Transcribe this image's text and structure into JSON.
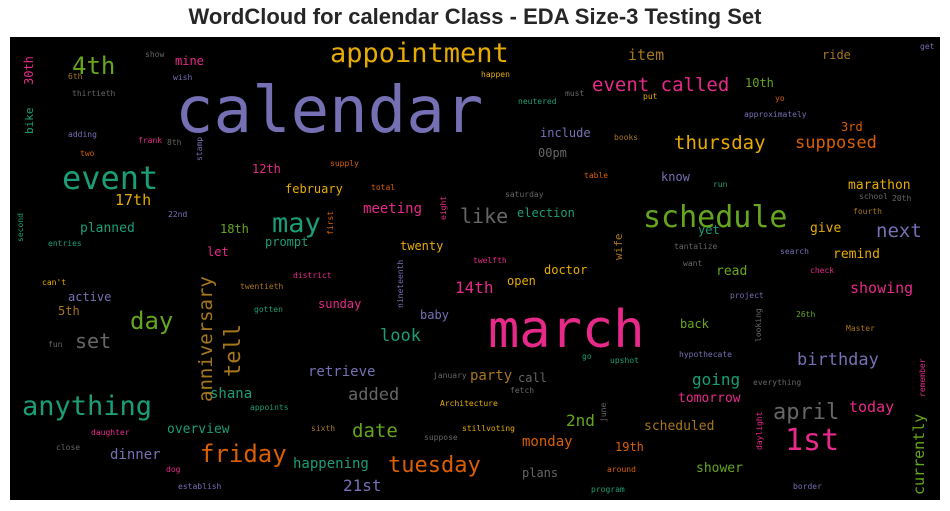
{
  "chart_data": {
    "type": "wordcloud",
    "title": "WordCloud for calendar Class - EDA Size-3 Testing Set",
    "background": "#000000",
    "palette": [
      "#7570b3",
      "#1b9e77",
      "#d95f02",
      "#e7298a",
      "#66a61e",
      "#e6ab02",
      "#a6761d",
      "#666666"
    ],
    "words": [
      {
        "text": "calendar",
        "size": 64,
        "color": "#7570b3"
      },
      {
        "text": "march",
        "size": 52,
        "color": "#e7298a"
      },
      {
        "text": "schedule",
        "size": 30,
        "color": "#66a61e"
      },
      {
        "text": "appointment",
        "size": 27,
        "color": "#e6ab02"
      },
      {
        "text": "event",
        "size": 32,
        "color": "#1b9e77"
      },
      {
        "text": "anything",
        "size": 27,
        "color": "#1b9e77"
      },
      {
        "text": "1st",
        "size": 30,
        "color": "#e7298a"
      },
      {
        "text": "may",
        "size": 27,
        "color": "#1b9e77"
      },
      {
        "text": "day",
        "size": 24,
        "color": "#66a61e"
      },
      {
        "text": "friday",
        "size": 24,
        "color": "#d95f02"
      },
      {
        "text": "tuesday",
        "size": 22,
        "color": "#d95f02"
      },
      {
        "text": "april",
        "size": 22,
        "color": "#666666"
      },
      {
        "text": "4th",
        "size": 24,
        "color": "#66a61e"
      },
      {
        "text": "like",
        "size": 20,
        "color": "#666666"
      },
      {
        "text": "set",
        "size": 20,
        "color": "#666666"
      },
      {
        "text": "date",
        "size": 19,
        "color": "#66a61e"
      },
      {
        "text": "tell",
        "size": 22,
        "color": "#a6761d"
      },
      {
        "text": "anniversary",
        "size": 19,
        "color": "#a6761d"
      },
      {
        "text": "event called",
        "size": 19,
        "color": "#e7298a"
      },
      {
        "text": "thursday",
        "size": 19,
        "color": "#e6ab02"
      },
      {
        "text": "next",
        "size": 19,
        "color": "#7570b3"
      },
      {
        "text": "supposed",
        "size": 17,
        "color": "#d95f02"
      },
      {
        "text": "birthday",
        "size": 17,
        "color": "#7570b3"
      },
      {
        "text": "look",
        "size": 17,
        "color": "#1b9e77"
      },
      {
        "text": "added",
        "size": 17,
        "color": "#666666"
      },
      {
        "text": "going",
        "size": 16,
        "color": "#1b9e77"
      },
      {
        "text": "14th",
        "size": 16,
        "color": "#e7298a"
      },
      {
        "text": "2nd",
        "size": 16,
        "color": "#66a61e"
      },
      {
        "text": "21st",
        "size": 16,
        "color": "#7570b3"
      },
      {
        "text": "today",
        "size": 15,
        "color": "#e7298a"
      },
      {
        "text": "currently",
        "size": 15,
        "color": "#66a61e"
      },
      {
        "text": "showing",
        "size": 15,
        "color": "#e7298a"
      },
      {
        "text": "item",
        "size": 15,
        "color": "#a6761d"
      },
      {
        "text": "17th",
        "size": 15,
        "color": "#e6ab02"
      },
      {
        "text": "meeting",
        "size": 14,
        "color": "#e7298a"
      },
      {
        "text": "retrieve",
        "size": 14,
        "color": "#7570b3"
      },
      {
        "text": "party",
        "size": 14,
        "color": "#a6761d"
      },
      {
        "text": "dinner",
        "size": 14,
        "color": "#7570b3"
      },
      {
        "text": "shana",
        "size": 14,
        "color": "#1b9e77"
      },
      {
        "text": "happening",
        "size": 14,
        "color": "#1b9e77"
      },
      {
        "text": "monday",
        "size": 14,
        "color": "#d95f02"
      },
      {
        "text": "tomorrow",
        "size": 13,
        "color": "#e7298a"
      },
      {
        "text": "marathon",
        "size": 13,
        "color": "#e6ab02"
      },
      {
        "text": "read",
        "size": 13,
        "color": "#66a61e"
      },
      {
        "text": "remind",
        "size": 13,
        "color": "#e6ab02"
      },
      {
        "text": "give",
        "size": 13,
        "color": "#e6ab02"
      },
      {
        "text": "planned",
        "size": 13,
        "color": "#1b9e77"
      },
      {
        "text": "overview",
        "size": 13,
        "color": "#1b9e77"
      },
      {
        "text": "scheduled",
        "size": 13,
        "color": "#a6761d"
      },
      {
        "text": "shower",
        "size": 13,
        "color": "#66a61e"
      },
      {
        "text": "doctor",
        "size": 12,
        "color": "#e6ab02"
      },
      {
        "text": "election",
        "size": 12,
        "color": "#1b9e77"
      },
      {
        "text": "twenty",
        "size": 12,
        "color": "#e6ab02"
      },
      {
        "text": "prompt",
        "size": 12,
        "color": "#1b9e77"
      },
      {
        "text": "february",
        "size": 12,
        "color": "#e6ab02"
      },
      {
        "text": "12th",
        "size": 12,
        "color": "#e7298a"
      },
      {
        "text": "18th",
        "size": 12,
        "color": "#66a61e"
      },
      {
        "text": "let",
        "size": 12,
        "color": "#e7298a"
      },
      {
        "text": "mine",
        "size": 12,
        "color": "#e7298a"
      },
      {
        "text": "10th",
        "size": 12,
        "color": "#66a61e"
      },
      {
        "text": "3rd",
        "size": 12,
        "color": "#d95f02"
      },
      {
        "text": "00pm",
        "size": 12,
        "color": "#666666"
      },
      {
        "text": "include",
        "size": 12,
        "color": "#7570b3"
      },
      {
        "text": "know",
        "size": 12,
        "color": "#7570b3"
      },
      {
        "text": "yet",
        "size": 12,
        "color": "#1b9e77"
      },
      {
        "text": "sunday",
        "size": 12,
        "color": "#e7298a"
      },
      {
        "text": "active",
        "size": 12,
        "color": "#7570b3"
      },
      {
        "text": "5th",
        "size": 12,
        "color": "#a6761d"
      },
      {
        "text": "open",
        "size": 12,
        "color": "#e6ab02"
      },
      {
        "text": "back",
        "size": 12,
        "color": "#66a61e"
      },
      {
        "text": "call",
        "size": 12,
        "color": "#666666"
      },
      {
        "text": "baby",
        "size": 12,
        "color": "#7570b3"
      },
      {
        "text": "plans",
        "size": 12,
        "color": "#666666"
      },
      {
        "text": "19th",
        "size": 12,
        "color": "#d95f02"
      },
      {
        "text": "ride",
        "size": 12,
        "color": "#a6761d"
      },
      {
        "text": "30th",
        "size": 12,
        "color": "#e7298a"
      },
      {
        "text": "bike",
        "size": 11,
        "color": "#1b9e77"
      },
      {
        "text": "wife",
        "size": 11,
        "color": "#a6761d"
      },
      {
        "text": "show",
        "size": 8,
        "color": "#666666"
      },
      {
        "text": "wish",
        "size": 8,
        "color": "#7570b3"
      },
      {
        "text": "6th",
        "size": 8,
        "color": "#a6761d"
      },
      {
        "text": "thirtieth",
        "size": 8,
        "color": "#666666"
      },
      {
        "text": "adding",
        "size": 8,
        "color": "#7570b3"
      },
      {
        "text": "two",
        "size": 8,
        "color": "#d95f02"
      },
      {
        "text": "frank",
        "size": 8,
        "color": "#e7298a"
      },
      {
        "text": "8th",
        "size": 8,
        "color": "#666666"
      },
      {
        "text": "stamp",
        "size": 8,
        "color": "#7570b3"
      },
      {
        "text": "happen",
        "size": 8,
        "color": "#e6ab02"
      },
      {
        "text": "neutered",
        "size": 8,
        "color": "#1b9e77"
      },
      {
        "text": "must",
        "size": 8,
        "color": "#666666"
      },
      {
        "text": "put",
        "size": 8,
        "color": "#e6ab02"
      },
      {
        "text": "yo",
        "size": 8,
        "color": "#d95f02"
      },
      {
        "text": "approximately",
        "size": 8,
        "color": "#7570b3"
      },
      {
        "text": "books",
        "size": 8,
        "color": "#a6761d"
      },
      {
        "text": "supply",
        "size": 8,
        "color": "#d95f02"
      },
      {
        "text": "total",
        "size": 8,
        "color": "#d95f02"
      },
      {
        "text": "table",
        "size": 8,
        "color": "#d95f02"
      },
      {
        "text": "run",
        "size": 8,
        "color": "#1b9e77"
      },
      {
        "text": "saturday",
        "size": 8,
        "color": "#666666"
      },
      {
        "text": "school",
        "size": 8,
        "color": "#666666"
      },
      {
        "text": "20th",
        "size": 8,
        "color": "#666666"
      },
      {
        "text": "fourth",
        "size": 8,
        "color": "#a6761d"
      },
      {
        "text": "22nd",
        "size": 8,
        "color": "#7570b3"
      },
      {
        "text": "first",
        "size": 8,
        "color": "#d95f02"
      },
      {
        "text": "eight",
        "size": 8,
        "color": "#e7298a"
      },
      {
        "text": "second",
        "size": 8,
        "color": "#1b9e77"
      },
      {
        "text": "entries",
        "size": 8,
        "color": "#1b9e77"
      },
      {
        "text": "twelfth",
        "size": 8,
        "color": "#e7298a"
      },
      {
        "text": "tantalize",
        "size": 8,
        "color": "#666666"
      },
      {
        "text": "want",
        "size": 8,
        "color": "#666666"
      },
      {
        "text": "search",
        "size": 8,
        "color": "#7570b3"
      },
      {
        "text": "check",
        "size": 8,
        "color": "#e7298a"
      },
      {
        "text": "can't",
        "size": 8,
        "color": "#e6ab02"
      },
      {
        "text": "district",
        "size": 8,
        "color": "#e7298a"
      },
      {
        "text": "twentieth",
        "size": 8,
        "color": "#a6761d"
      },
      {
        "text": "nineteenth",
        "size": 8,
        "color": "#7570b3"
      },
      {
        "text": "project",
        "size": 8,
        "color": "#7570b3"
      },
      {
        "text": "gotten",
        "size": 8,
        "color": "#1b9e77"
      },
      {
        "text": "26th",
        "size": 8,
        "color": "#66a61e"
      },
      {
        "text": "Master",
        "size": 8,
        "color": "#a6761d"
      },
      {
        "text": "looking",
        "size": 8,
        "color": "#666666"
      },
      {
        "text": "fun",
        "size": 8,
        "color": "#666666"
      },
      {
        "text": "go",
        "size": 8,
        "color": "#1b9e77"
      },
      {
        "text": "upshot",
        "size": 8,
        "color": "#1b9e77"
      },
      {
        "text": "hypothecate",
        "size": 8,
        "color": "#7570b3"
      },
      {
        "text": "january",
        "size": 8,
        "color": "#666666"
      },
      {
        "text": "fetch",
        "size": 8,
        "color": "#666666"
      },
      {
        "text": "everything",
        "size": 8,
        "color": "#666666"
      },
      {
        "text": "remember",
        "size": 8,
        "color": "#e7298a"
      },
      {
        "text": "appoints",
        "size": 8,
        "color": "#1b9e77"
      },
      {
        "text": "Architecture",
        "size": 8,
        "color": "#e6ab02"
      },
      {
        "text": "june",
        "size": 8,
        "color": "#666666"
      },
      {
        "text": "daylight",
        "size": 8,
        "color": "#e7298a"
      },
      {
        "text": "sixth",
        "size": 8,
        "color": "#a6761d"
      },
      {
        "text": "stillvoting",
        "size": 8,
        "color": "#e6ab02"
      },
      {
        "text": "suppose",
        "size": 8,
        "color": "#666666"
      },
      {
        "text": "daughter",
        "size": 8,
        "color": "#e7298a"
      },
      {
        "text": "close",
        "size": 8,
        "color": "#666666"
      },
      {
        "text": "dog",
        "size": 8,
        "color": "#e7298a"
      },
      {
        "text": "around",
        "size": 8,
        "color": "#d95f02"
      },
      {
        "text": "establish",
        "size": 8,
        "color": "#7570b3"
      },
      {
        "text": "program",
        "size": 8,
        "color": "#1b9e77"
      },
      {
        "text": "border",
        "size": 8,
        "color": "#7570b3"
      },
      {
        "text": "get",
        "size": 8,
        "color": "#7570b3"
      }
    ]
  }
}
